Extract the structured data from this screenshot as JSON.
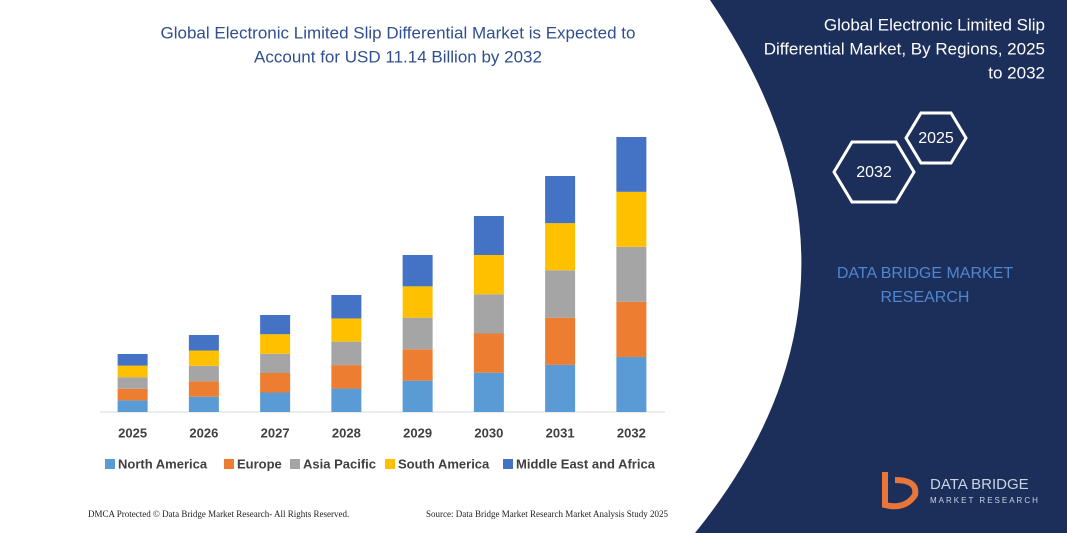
{
  "chart_data": {
    "type": "bar",
    "stacked": true,
    "title": [
      "Global Electronic Limited Slip Differential Market is Expected to",
      "Account for USD 11.14 Billion by 2032"
    ],
    "categories": [
      "2025",
      "2026",
      "2027",
      "2028",
      "2029",
      "2030",
      "2031",
      "2032"
    ],
    "series": [
      {
        "name": "North America",
        "color": "#5b9bd5",
        "values": [
          0.47,
          0.62,
          0.79,
          0.95,
          1.27,
          1.59,
          1.91,
          2.23
        ]
      },
      {
        "name": "Europe",
        "color": "#ed7d31",
        "values": [
          0.47,
          0.62,
          0.79,
          0.95,
          1.27,
          1.59,
          1.91,
          2.23
        ]
      },
      {
        "name": "Asia Pacific",
        "color": "#a5a5a5",
        "values": [
          0.47,
          0.63,
          0.78,
          0.95,
          1.28,
          1.59,
          1.92,
          2.23
        ]
      },
      {
        "name": "South America",
        "color": "#ffc000",
        "values": [
          0.47,
          0.62,
          0.79,
          0.94,
          1.27,
          1.59,
          1.91,
          2.23
        ]
      },
      {
        "name": "Middle East and Africa",
        "color": "#4472c4",
        "values": [
          0.47,
          0.63,
          0.78,
          0.95,
          1.27,
          1.58,
          1.91,
          2.22
        ]
      }
    ],
    "ylim": [
      0,
      11.14
    ],
    "grid": false,
    "legend": "bottom"
  },
  "panel": {
    "title": [
      "Global Electronic Limited Slip",
      "Differential Market, By Regions, 2025",
      "to 2032"
    ],
    "hex_start": "2025",
    "hex_end": "2032",
    "brand": [
      "DATA BRIDGE MARKET",
      "RESEARCH"
    ],
    "logo": [
      "DATA BRIDGE",
      "MARKET RESEARCH"
    ]
  },
  "footer": {
    "left": "DMCA Protected © Data Bridge Market Research-  All Rights Reserved.",
    "right": "Source: Data Bridge Market Research  Market Analysis Study 2025"
  }
}
